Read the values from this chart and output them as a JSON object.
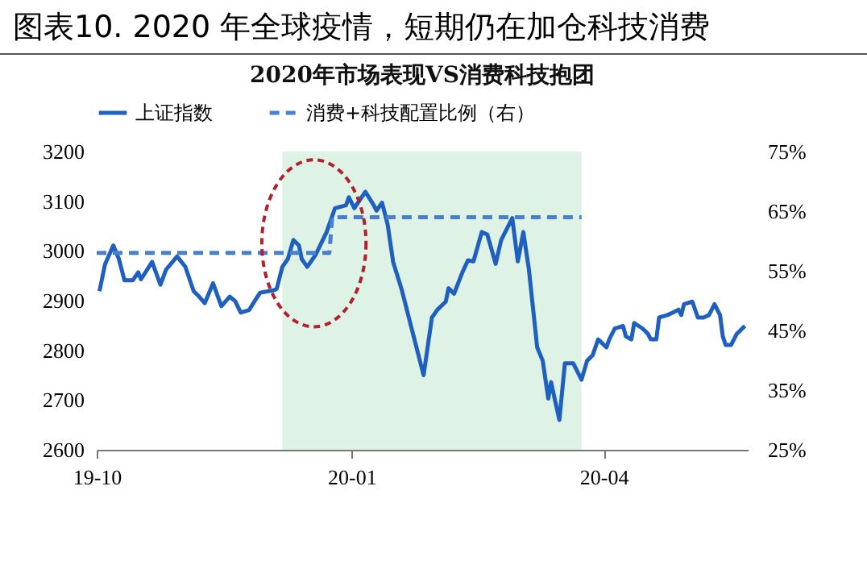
{
  "chart_data": {
    "type": "line",
    "title": "图表10. 2020 年全球疫情，短期仍在加仓科技消费",
    "subtitle": "2020年市场表现VS消费科技抱团",
    "legend": "top",
    "grid": false,
    "xlim": [
      "2019-10-01",
      "2020-05-23"
    ],
    "xticks": [
      {
        "value": "2019-10-01",
        "label": "19-10"
      },
      {
        "value": "2020-01-01",
        "label": "20-01"
      },
      {
        "value": "2020-04-01",
        "label": "20-04"
      }
    ],
    "ylim": [
      2600,
      3200
    ],
    "yticks": [
      2600,
      2700,
      2800,
      2900,
      3000,
      3100,
      3200
    ],
    "y2lim": [
      25,
      75
    ],
    "y2ticks": [
      {
        "value": 25,
        "label": "25%"
      },
      {
        "value": 35,
        "label": "35%"
      },
      {
        "value": 45,
        "label": "45%"
      },
      {
        "value": 55,
        "label": "55%"
      },
      {
        "value": 65,
        "label": "65%"
      },
      {
        "value": 75,
        "label": "75%"
      }
    ],
    "bands": [
      {
        "axis": "x",
        "from": "2019-12-07",
        "to": "2020-03-24",
        "color": "#dff2e6"
      }
    ],
    "series": [
      {
        "name": "上证指数",
        "color": "#1f5fbf",
        "line_style": "solid",
        "x": [
          "2019-10-02",
          "2019-10-04",
          "2019-10-07",
          "2019-10-09",
          "2019-10-11",
          "2019-10-14",
          "2019-10-16",
          "2019-10-17",
          "2019-10-21",
          "2019-10-24",
          "2019-10-26",
          "2019-10-30",
          "2019-11-02",
          "2019-11-05",
          "2019-11-07",
          "2019-11-09",
          "2019-11-10",
          "2019-11-12",
          "2019-11-15",
          "2019-11-18",
          "2019-11-20",
          "2019-11-22",
          "2019-11-25",
          "2019-11-27",
          "2019-11-29",
          "2019-12-04",
          "2019-12-05",
          "2019-12-07",
          "2019-12-09",
          "2019-12-11",
          "2019-12-13",
          "2019-12-14",
          "2019-12-16",
          "2019-12-19",
          "2019-12-23",
          "2019-12-26",
          "2019-12-30",
          "2019-12-31",
          "2020-01-02",
          "2020-01-04",
          "2020-01-06",
          "2020-01-09",
          "2020-01-10",
          "2020-01-12",
          "2020-01-14",
          "2020-01-16",
          "2020-01-19",
          "2020-01-27",
          "2020-01-30",
          "2020-02-01",
          "2020-02-04",
          "2020-02-05",
          "2020-02-07",
          "2020-02-10",
          "2020-02-12",
          "2020-02-14",
          "2020-02-17",
          "2020-02-19",
          "2020-02-22",
          "2020-02-24",
          "2020-02-28",
          "2020-03-01",
          "2020-03-03",
          "2020-03-05",
          "2020-03-08",
          "2020-03-10",
          "2020-03-12",
          "2020-03-13",
          "2020-03-16",
          "2020-03-18",
          "2020-03-21",
          "2020-03-24",
          "2020-03-26",
          "2020-03-28",
          "2020-03-30",
          "2020-03-31",
          "2020-04-02",
          "2020-04-03",
          "2020-04-05",
          "2020-04-08",
          "2020-04-09",
          "2020-04-11",
          "2020-04-12",
          "2020-04-15",
          "2020-04-17",
          "2020-04-18",
          "2020-04-20",
          "2020-04-21",
          "2020-04-24",
          "2020-04-26",
          "2020-04-28",
          "2020-04-29",
          "2020-04-30",
          "2020-05-03",
          "2020-05-05",
          "2020-05-07",
          "2020-05-09",
          "2020-05-11",
          "2020-05-13",
          "2020-05-14",
          "2020-05-15",
          "2020-05-17",
          "2020-05-19",
          "2020-05-20",
          "2020-05-21",
          "2020-05-22"
        ],
        "values": [
          2919,
          2973,
          3011,
          2984,
          2941,
          2941,
          2957,
          2943,
          2978,
          2932,
          2962,
          2989,
          2968,
          2919,
          2908,
          2895,
          2908,
          2935,
          2889,
          2908,
          2899,
          2876,
          2881,
          2899,
          2916,
          2921,
          2924,
          2968,
          2984,
          3022,
          3011,
          2984,
          2968,
          2992,
          3038,
          3086,
          3092,
          3108,
          3086,
          3103,
          3119,
          3092,
          3081,
          3097,
          3054,
          2978,
          2924,
          2750,
          2866,
          2882,
          2898,
          2925,
          2914,
          2957,
          2981,
          2979,
          3038,
          3033,
          2974,
          3022,
          3066,
          2979,
          3038,
          2963,
          2806,
          2779,
          2703,
          2736,
          2660,
          2774,
          2774,
          2741,
          2779,
          2790,
          2822,
          2817,
          2806,
          2822,
          2844,
          2849,
          2828,
          2822,
          2855,
          2844,
          2833,
          2822,
          2822,
          2866,
          2871,
          2876,
          2882,
          2871,
          2893,
          2898,
          2866,
          2866,
          2871,
          2893,
          2871,
          2828,
          2811,
          2811,
          2833,
          2838,
          2844,
          2849
        ]
      },
      {
        "name": "消费+科技配置比例（右）",
        "color": "#4a7fd0",
        "line_style": "dashed",
        "axis": "y2",
        "x": [
          "2019-10-01",
          "2019-12-24",
          "2019-12-25",
          "2020-03-24"
        ],
        "values": [
          58,
          58,
          64,
          64
        ]
      }
    ]
  }
}
